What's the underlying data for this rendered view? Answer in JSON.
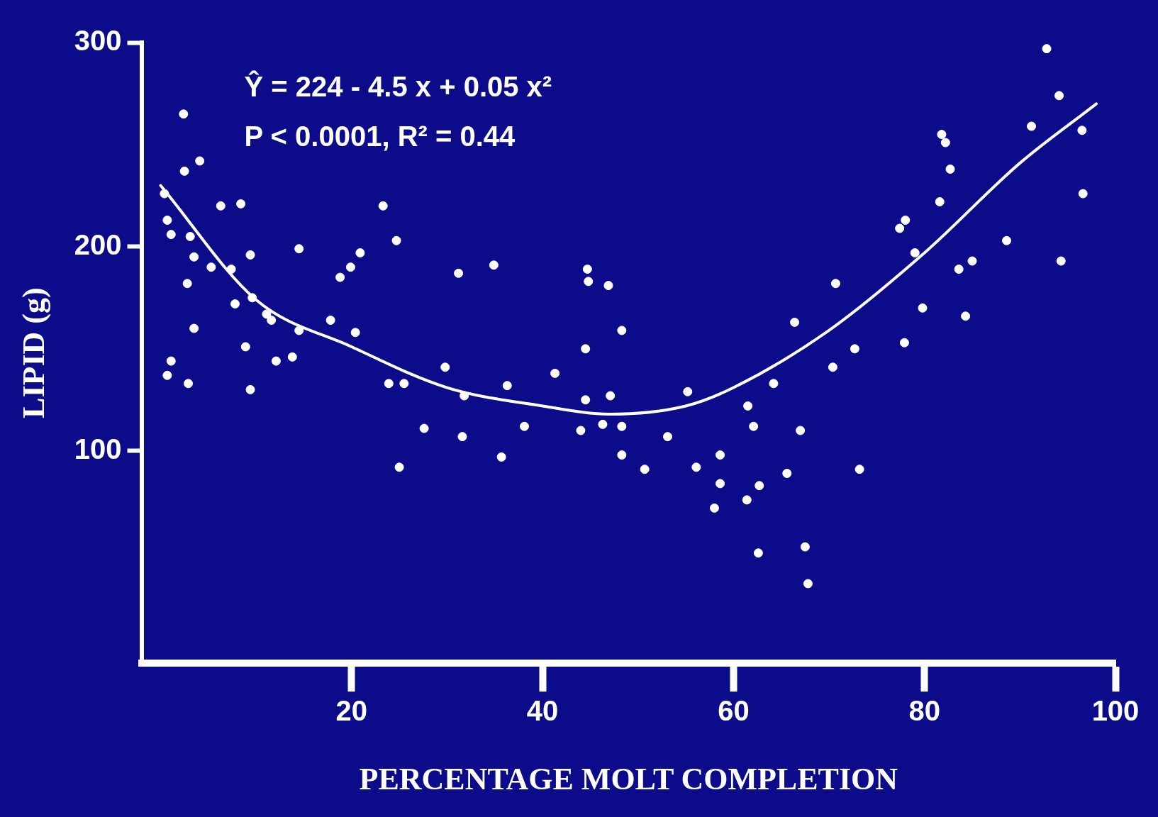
{
  "chart_data": {
    "type": "scatter",
    "xlabel": "PERCENTAGE MOLT COMPLETION",
    "ylabel": "LIPID (g)",
    "annotations": [
      "Ŷ = 224 - 4.5 x + 0.05 x²",
      "P < 0.0001, R² = 0.44"
    ],
    "xlim": [
      -2,
      100
    ],
    "xticks": [
      20,
      40,
      60,
      80,
      100
    ],
    "ylim": [
      -4,
      300
    ],
    "yticks": [
      100,
      200,
      300
    ],
    "grid": false,
    "legend": false,
    "marker": "circle",
    "series": [
      {
        "type": "scatter",
        "color": "#ffffff",
        "x": [
          0.4,
          0.7,
          1.1,
          0.7,
          1.1,
          2.4,
          2.5,
          4.1,
          2.8,
          2.9,
          3.1,
          3.5,
          3.5,
          5.3,
          6.3,
          8.4,
          7.4,
          7.8,
          9.4,
          9.6,
          8.9,
          9.4,
          11.1,
          11.6,
          12.1,
          13.8,
          14.5,
          14.5,
          17.8,
          18.8,
          19.9,
          20.9,
          20.4,
          23.3,
          24.7,
          23.9,
          25.5,
          25,
          27.6,
          29.8,
          31.2,
          31.8,
          31.6,
          34.9,
          36.3,
          35.7,
          38.1,
          41.3,
          44.5,
          44,
          44.7,
          44.8,
          46.9,
          44.5,
          46.3,
          47.1,
          48.3,
          48.3,
          48.3,
          50.7,
          53.1,
          55.2,
          56.1,
          58.6,
          58.6,
          58,
          61.5,
          62.1,
          62.7,
          61.4,
          62.6,
          64.2,
          66.4,
          65.6,
          67,
          67.5,
          67.8,
          70.4,
          70.7,
          72.7,
          73.2,
          77.4,
          78,
          77.9,
          79,
          79.8,
          81.8,
          82.2,
          81.6,
          82.7,
          83.6,
          85,
          84.3,
          88.6,
          91.2,
          92.8,
          94.1,
          94.3,
          96.6,
          96.5
        ],
        "values": [
          226,
          213,
          206,
          137,
          144,
          265,
          237,
          242,
          182,
          133,
          205,
          195,
          160,
          190,
          220,
          221,
          189,
          172,
          196,
          175,
          151,
          130,
          167,
          164,
          144,
          146,
          199,
          159,
          164,
          185,
          190,
          197,
          158,
          220,
          203,
          133,
          133,
          92,
          111,
          141,
          187,
          127,
          107,
          191,
          132,
          97,
          112,
          138,
          125,
          110,
          189,
          183,
          181,
          150,
          113,
          127,
          159,
          112,
          98,
          91,
          107,
          129,
          92,
          98,
          84,
          72,
          122,
          112,
          83,
          76,
          50,
          133,
          163,
          89,
          110,
          53,
          35,
          141,
          182,
          150,
          91,
          209,
          213,
          153,
          197,
          170,
          255,
          251,
          222,
          238,
          189,
          193,
          166,
          203,
          259,
          297,
          274,
          193,
          226,
          257
        ]
      },
      {
        "type": "line",
        "marker": "none",
        "color": "#ffffff",
        "x": [
          0,
          10,
          20,
          30,
          40,
          47,
          55,
          60,
          70,
          80,
          90,
          98
        ],
        "values": [
          230,
          174,
          151,
          131,
          122,
          118,
          122,
          131,
          159,
          197,
          241,
          270
        ]
      }
    ]
  }
}
